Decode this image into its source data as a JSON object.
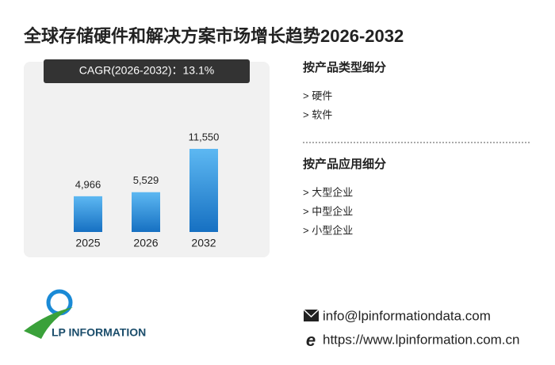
{
  "title": "全球存储硬件和解决方案市场增长趋势2026-2032",
  "cagr": "CAGR(2026-2032)：13.1%",
  "chart_data": {
    "type": "bar",
    "categories": [
      "2025",
      "2026",
      "2032"
    ],
    "values": [
      4966,
      5529,
      11550
    ],
    "value_labels": [
      "4,966",
      "5,529",
      "11,550"
    ],
    "color": "#2a86d6"
  },
  "segments": [
    {
      "title": "按产品类型细分",
      "items": [
        "> 硬件",
        "> 软件"
      ]
    },
    {
      "title": "按产品应用细分",
      "items": [
        "> 大型企业",
        "> 中型企业",
        "> 小型企业"
      ]
    }
  ],
  "logo": "LP INFORMATION",
  "contact": {
    "email": "info@lpinformationdata.com",
    "website": "https://www.lpinformation.com.cn"
  }
}
